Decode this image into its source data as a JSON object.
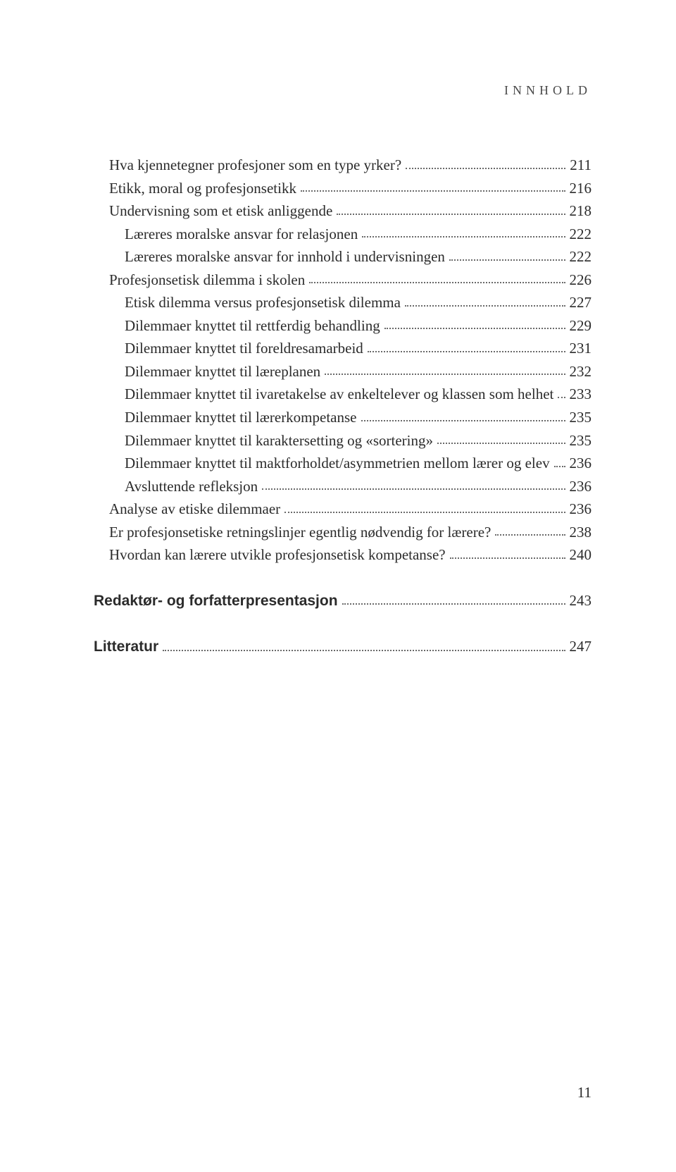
{
  "running_head": "INNHOLD",
  "page_number": "11",
  "toc": {
    "groups": [
      {
        "gap_before": false,
        "lines": [
          {
            "indent": 1,
            "bold": false,
            "label": "Hva kjennetegner profesjoner som en type yrker?",
            "page": "211"
          },
          {
            "indent": 1,
            "bold": false,
            "label": "Etikk, moral og profesjonsetikk",
            "page": "216"
          },
          {
            "indent": 1,
            "bold": false,
            "label": "Undervisning som et etisk anliggende",
            "page": "218"
          },
          {
            "indent": 2,
            "bold": false,
            "label": "Læreres moralske ansvar for relasjonen",
            "page": "222"
          },
          {
            "indent": 2,
            "bold": false,
            "label": "Læreres moralske ansvar for innhold i undervisningen",
            "page": "222"
          },
          {
            "indent": 1,
            "bold": false,
            "label": "Profesjonsetisk dilemma i skolen",
            "page": "226"
          },
          {
            "indent": 2,
            "bold": false,
            "label": "Etisk dilemma versus profesjonsetisk dilemma",
            "page": "227"
          },
          {
            "indent": 2,
            "bold": false,
            "label": "Dilemmaer knyttet til rettferdig behandling",
            "page": "229"
          },
          {
            "indent": 2,
            "bold": false,
            "label": "Dilemmaer knyttet til foreldresamarbeid",
            "page": "231"
          },
          {
            "indent": 2,
            "bold": false,
            "label": "Dilemmaer knyttet til læreplanen",
            "page": "232"
          },
          {
            "indent": 2,
            "bold": false,
            "label": "Dilemmaer knyttet til ivaretakelse av enkeltelever og klassen som helhet",
            "page": "233"
          },
          {
            "indent": 2,
            "bold": false,
            "label": "Dilemmaer knyttet til lærerkompetanse",
            "page": "235"
          },
          {
            "indent": 2,
            "bold": false,
            "label": "Dilemmaer knyttet til karaktersetting og «sortering»",
            "page": "235"
          },
          {
            "indent": 2,
            "bold": false,
            "label": "Dilemmaer knyttet til maktforholdet/asymmetrien mellom lærer og elev",
            "page": "236"
          },
          {
            "indent": 2,
            "bold": false,
            "label": "Avsluttende refleksjon",
            "page": "236"
          },
          {
            "indent": 1,
            "bold": false,
            "label": "Analyse av etiske dilemmaer",
            "page": "236"
          },
          {
            "indent": 1,
            "bold": false,
            "label": "Er profesjonsetiske retningslinjer egentlig nødvendig for lærere?",
            "page": "238"
          },
          {
            "indent": 1,
            "bold": false,
            "label": "Hvordan kan lærere utvikle profesjonsetisk kompetanse?",
            "page": "240"
          }
        ]
      },
      {
        "gap_before": true,
        "lines": [
          {
            "indent": 0,
            "bold": true,
            "label": "Redaktør- og forfatterpresentasjon",
            "page": "243"
          }
        ]
      },
      {
        "gap_before": true,
        "lines": [
          {
            "indent": 0,
            "bold": true,
            "label": "Litteratur",
            "page": "247"
          }
        ]
      }
    ]
  }
}
